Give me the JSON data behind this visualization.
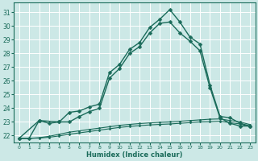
{
  "xlabel": "Humidex (Indice chaleur)",
  "background_color": "#cce8e6",
  "grid_color": "#b0d8d5",
  "line_color": "#1a6b5a",
  "xlim": [
    -0.5,
    23.5
  ],
  "ylim": [
    21.5,
    31.7
  ],
  "yticks": [
    22,
    23,
    24,
    25,
    26,
    27,
    28,
    29,
    30,
    31
  ],
  "xticks": [
    0,
    1,
    2,
    3,
    4,
    5,
    6,
    7,
    8,
    9,
    10,
    11,
    12,
    13,
    14,
    15,
    16,
    17,
    18,
    19,
    20,
    21,
    22,
    23
  ],
  "series": [
    {
      "x": [
        0,
        1,
        2,
        3,
        4,
        5,
        6,
        7,
        8,
        9,
        10,
        11,
        12,
        13,
        14,
        15,
        16,
        17,
        18,
        19,
        20,
        21,
        22,
        23
      ],
      "y": [
        21.8,
        21.8,
        23.1,
        22.9,
        23.0,
        23.7,
        23.8,
        24.1,
        24.3,
        26.6,
        27.2,
        28.3,
        28.8,
        29.9,
        30.5,
        31.2,
        30.3,
        29.2,
        28.7,
        25.7,
        23.4,
        23.3,
        22.9,
        22.7
      ],
      "marker": "D",
      "markersize": 2.5,
      "linewidth": 1.0
    },
    {
      "x": [
        0,
        1,
        2,
        3,
        4,
        5,
        6,
        7,
        8,
        9,
        10,
        11,
        12,
        13,
        14,
        15,
        16,
        17,
        18,
        19,
        20,
        21,
        22,
        23
      ],
      "y": [
        21.8,
        21.8,
        21.85,
        21.95,
        22.1,
        22.25,
        22.35,
        22.45,
        22.55,
        22.65,
        22.75,
        22.82,
        22.88,
        22.93,
        22.97,
        23.0,
        23.05,
        23.1,
        23.15,
        23.2,
        23.22,
        23.1,
        23.0,
        22.8
      ],
      "marker": "D",
      "markersize": 1.5,
      "linewidth": 0.8
    },
    {
      "x": [
        0,
        1,
        2,
        3,
        4,
        5,
        6,
        7,
        8,
        9,
        10,
        11,
        12,
        13,
        14,
        15,
        16,
        17,
        18,
        19,
        20,
        21,
        22,
        23
      ],
      "y": [
        21.8,
        21.8,
        21.82,
        21.88,
        21.98,
        22.1,
        22.2,
        22.3,
        22.4,
        22.5,
        22.6,
        22.67,
        22.73,
        22.78,
        22.82,
        22.85,
        22.9,
        22.95,
        23.0,
        23.02,
        23.05,
        22.95,
        22.85,
        22.65
      ],
      "marker": "D",
      "markersize": 1.5,
      "linewidth": 0.8
    },
    {
      "x": [
        0,
        2,
        4,
        5,
        6,
        7,
        8,
        9,
        10,
        11,
        12,
        13,
        14,
        15,
        16,
        17,
        18,
        19,
        20,
        21,
        22,
        23
      ],
      "y": [
        21.8,
        23.1,
        23.0,
        23.0,
        23.4,
        23.75,
        24.0,
        26.2,
        26.9,
        28.0,
        28.5,
        29.5,
        30.2,
        30.3,
        29.5,
        28.9,
        28.2,
        25.5,
        23.3,
        22.9,
        22.7,
        22.7
      ],
      "marker": "D",
      "markersize": 2.5,
      "linewidth": 1.0
    }
  ]
}
